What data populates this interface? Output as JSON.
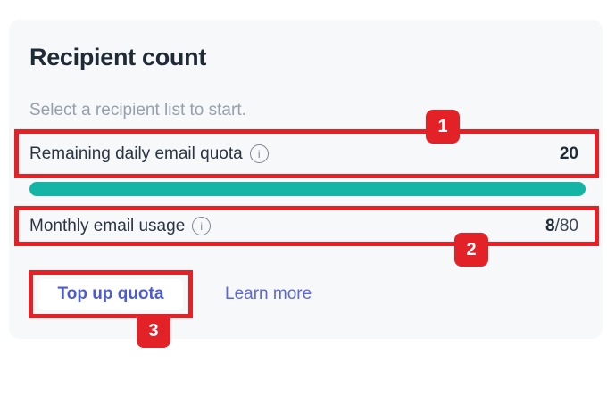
{
  "colors": {
    "annotation_red": "#e32228",
    "progress_teal": "#15b5a5",
    "link_indigo": "#4d5bd3",
    "card_bg": "#f7f8fa"
  },
  "card": {
    "title": "Recipient count",
    "subtitle": "Select a recipient list to start.",
    "daily_quota_row": {
      "label": "Remaining daily email quota",
      "info_icon": "i",
      "value": "20",
      "progress_percent": 100
    },
    "monthly_usage_row": {
      "label": "Monthly email usage",
      "info_icon": "i",
      "used": "8",
      "limit": "/80"
    },
    "footer": {
      "top_up_button": "Top up quota",
      "learn_more_link": "Learn more"
    }
  },
  "annotations": [
    {
      "label": "1",
      "target": "remaining-daily-email-quota-row"
    },
    {
      "label": "2",
      "target": "monthly-email-usage-row"
    },
    {
      "label": "3",
      "target": "top-up-quota-button"
    }
  ]
}
